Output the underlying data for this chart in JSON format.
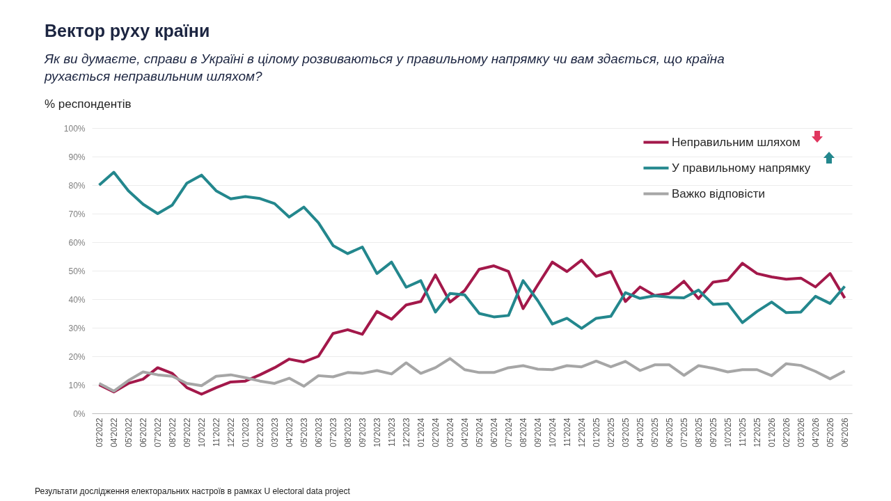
{
  "chart_data": {
    "type": "line",
    "title": "Вектор руху країни",
    "subtitle": "Як ви думаєте, справи в Україні в цілому розвиваються у правильному напрямку чи вам здається, що країна рухається неправильним шляхом?",
    "ylabel": "% респондентів",
    "annotations": [
      "Результати дослідження електоральних настроїв в рамках U electoral data project"
    ],
    "categories": [
      "03'2022",
      "04'2022",
      "05'2022",
      "06'2022",
      "07'2022",
      "08'2022",
      "09'2022",
      "10'2022",
      "11'2022",
      "12'2022",
      "01'2023",
      "02'2023",
      "03'2023",
      "04'2023",
      "05'2023",
      "06'2023",
      "07'2023",
      "08'2023",
      "09'2023",
      "10'2023",
      "11'2023",
      "12'2023",
      "01'2024",
      "02'2024",
      "03'2024",
      "04'2024",
      "05'2024",
      "06'2024",
      "07'2024",
      "08'2024",
      "09'2024",
      "10'2024",
      "11'2024",
      "12'2024",
      "01'2025",
      "02'2025",
      "03'2025",
      "04'2025",
      "05'2025",
      "06'2025",
      "07'2025",
      "08'2025",
      "09'2025",
      "10'2025",
      "11'2025",
      "12'2025",
      "01'2026",
      "02'2026",
      "03'2026",
      "04'2026",
      "05'2026",
      "06'2026"
    ],
    "series": [
      {
        "name": "Неправильним шляхом",
        "color": "#a3184a",
        "values": [
          10,
          7.5,
          10.5,
          12,
          16,
          14,
          9,
          6.7,
          9,
          11,
          11.3,
          13.5,
          16,
          19,
          18,
          20,
          28,
          29.3,
          27.7,
          35.7,
          33,
          38,
          39.2,
          48.5,
          39,
          43,
          50.5,
          51.7,
          49.7,
          36.7,
          45,
          53,
          49.7,
          53.7,
          48,
          49.7,
          39.2,
          44.3,
          41.3,
          42,
          46.3,
          40.2,
          46,
          46.7,
          52.6,
          49,
          47.8,
          47,
          47.4,
          44.3,
          49,
          40.4
        ]
      },
      {
        "name": "У правильному напрямку",
        "color": "#23878d",
        "values": [
          80,
          84.5,
          78,
          73.3,
          70,
          73,
          80.7,
          83.5,
          78,
          75.2,
          76,
          75.3,
          73.5,
          68.8,
          72.3,
          66.8,
          58.8,
          56,
          58.3,
          49,
          53,
          44.2,
          46.5,
          35.5,
          42,
          41.5,
          35,
          33.8,
          34.3,
          46.5,
          39.5,
          31.3,
          33.3,
          29.8,
          33.3,
          34,
          42.3,
          40.3,
          41.2,
          40.7,
          40.5,
          43.2,
          38.2,
          38.5,
          31.8,
          35.7,
          39,
          35.3,
          35.5,
          41,
          38.5,
          44.5
        ]
      },
      {
        "name": "Важко відповісти",
        "color": "#a6a6a6",
        "values": [
          10.5,
          7.8,
          11.5,
          14.5,
          13.5,
          13,
          10.5,
          9.7,
          13,
          13.5,
          12.5,
          11.3,
          10.5,
          12.3,
          9.5,
          13.2,
          12.8,
          14.3,
          14,
          15,
          13.8,
          17.7,
          14,
          16,
          19.2,
          15.3,
          14.3,
          14.3,
          16,
          16.7,
          15.5,
          15.3,
          16.7,
          16.3,
          18.3,
          16.3,
          18.2,
          15,
          17,
          17,
          13.3,
          16.7,
          15.8,
          14.5,
          15.3,
          15.3,
          13.2,
          17.4,
          16.8,
          14.7,
          12.1,
          14.8
        ]
      }
    ],
    "ylim": [
      0,
      100
    ],
    "yticks": [
      {
        "value": 0,
        "label": "0%"
      },
      {
        "value": 10,
        "label": "10%"
      },
      {
        "value": 20,
        "label": "20%"
      },
      {
        "value": 30,
        "label": "30%"
      },
      {
        "value": 40,
        "label": "40%"
      },
      {
        "value": 50,
        "label": "50%"
      },
      {
        "value": 60,
        "label": "60%"
      },
      {
        "value": 70,
        "label": "70%"
      },
      {
        "value": 80,
        "label": "80%"
      },
      {
        "value": 90,
        "label": "90%"
      },
      {
        "value": 100,
        "label": "100%"
      }
    ],
    "grid": "y",
    "legend": "top right",
    "line_style": "solid"
  }
}
